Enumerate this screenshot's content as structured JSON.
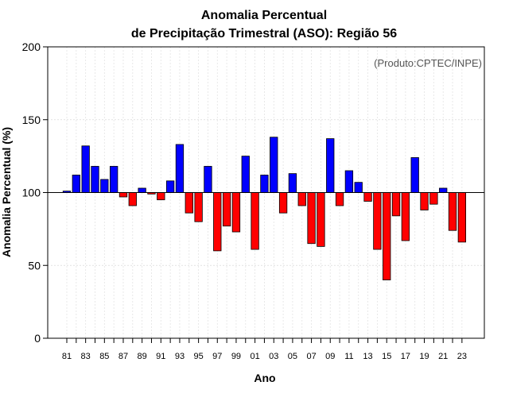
{
  "chart_data": {
    "type": "bar",
    "title_line1": "Anomalia Percentual",
    "title_line2": "de Precipitação Trimestral (ASO): Região 56",
    "xlabel": "Ano",
    "ylabel": "Anomalia Percentual (%)",
    "source_note": "(Produto:CPTEC/INPE)",
    "ylim": [
      0,
      200
    ],
    "yticks": [
      0,
      50,
      100,
      150,
      200
    ],
    "baseline": 100,
    "grid": true,
    "positive_color": "#0000ff",
    "negative_color": "#ff0000",
    "categories": [
      "81",
      "82",
      "83",
      "84",
      "85",
      "86",
      "87",
      "88",
      "89",
      "90",
      "91",
      "92",
      "93",
      "94",
      "95",
      "96",
      "97",
      "98",
      "99",
      "00",
      "01",
      "02",
      "03",
      "04",
      "05",
      "06",
      "07",
      "08",
      "09",
      "10",
      "11",
      "12",
      "13",
      "14",
      "15",
      "16",
      "17",
      "18",
      "19",
      "20",
      "21",
      "22",
      "23"
    ],
    "tick_labels": [
      "81",
      "83",
      "85",
      "87",
      "89",
      "91",
      "93",
      "95",
      "97",
      "99",
      "01",
      "03",
      "05",
      "07",
      "09",
      "11",
      "13",
      "15",
      "17",
      "19",
      "21",
      "23"
    ],
    "values": [
      101,
      112,
      132,
      118,
      109,
      118,
      97,
      91,
      103,
      99,
      95,
      108,
      133,
      86,
      80,
      118,
      60,
      77,
      73,
      125,
      61,
      112,
      138,
      86,
      113,
      91,
      65,
      63,
      137,
      91,
      115,
      107,
      94,
      61,
      40,
      84,
      67,
      124,
      88,
      92,
      103,
      74,
      66
    ]
  }
}
